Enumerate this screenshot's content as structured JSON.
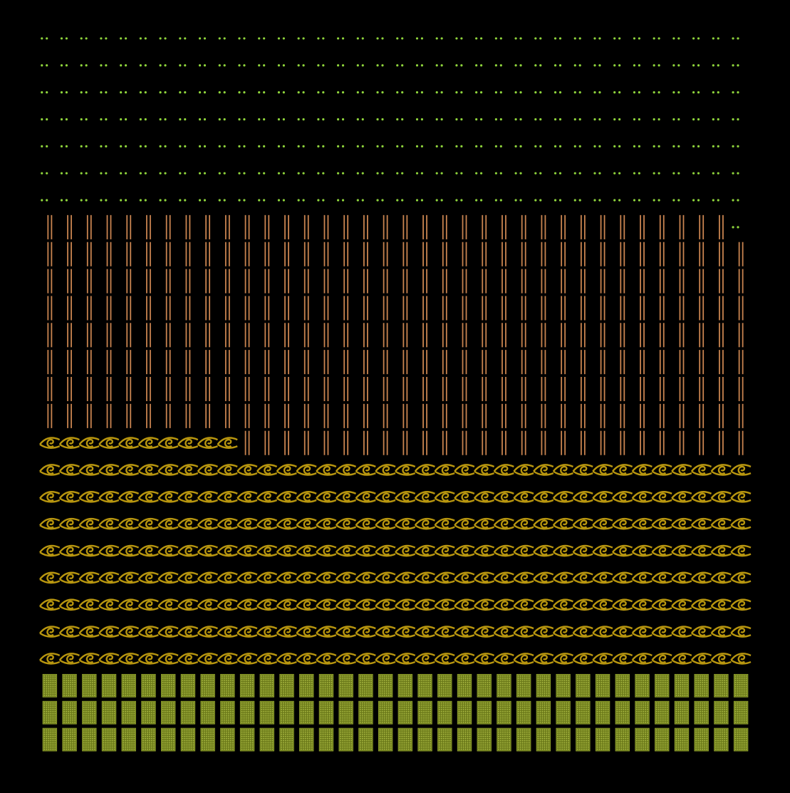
{
  "chart_data": {
    "type": "waffle",
    "values": [
      108,
      298,
      313,
      253
    ],
    "colors": [
      "#8c9c2c",
      "#b8960f",
      "#c98450",
      "#8fd43c"
    ],
    "patterns": [
      "mesh",
      "swirl",
      "double-line",
      "dots"
    ]
  }
}
